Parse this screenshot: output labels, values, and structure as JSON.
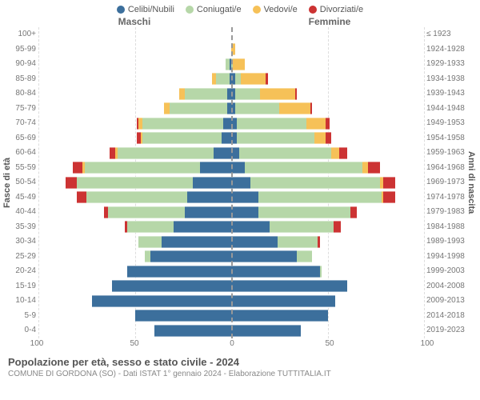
{
  "legend": [
    {
      "label": "Celibi/Nubili",
      "color": "#3c6f9c"
    },
    {
      "label": "Coniugati/e",
      "color": "#b6d7a8"
    },
    {
      "label": "Vedovi/e",
      "color": "#f6c158"
    },
    {
      "label": "Divorziati/e",
      "color": "#cc3333"
    }
  ],
  "headers": {
    "male": "Maschi",
    "female": "Femmine"
  },
  "y_axis_left": "Fasce di età",
  "y_axis_right": "Anni di nascita",
  "x_axis": {
    "max": 100,
    "ticks": [
      100,
      50,
      0,
      50,
      100
    ]
  },
  "title": "Popolazione per età, sesso e stato civile - 2024",
  "subtitle": "COMUNE DI GORDONA (SO) - Dati ISTAT 1° gennaio 2024 - Elaborazione TUTTITALIA.IT",
  "colors": {
    "single": "#3c6f9c",
    "married": "#b6d7a8",
    "widowed": "#f6c158",
    "divorced": "#cc3333",
    "grid": "#dddddd",
    "axis": "#999999",
    "text": "#555555",
    "background": "#ffffff"
  },
  "rows": [
    {
      "age": "100+",
      "birth": "≤ 1923",
      "m": {
        "s": 0,
        "c": 0,
        "w": 0,
        "d": 0
      },
      "f": {
        "s": 0,
        "c": 0,
        "w": 0,
        "d": 0
      }
    },
    {
      "age": "95-99",
      "birth": "1924-1928",
      "m": {
        "s": 0,
        "c": 0,
        "w": 0,
        "d": 0
      },
      "f": {
        "s": 0,
        "c": 0,
        "w": 2,
        "d": 0
      }
    },
    {
      "age": "90-94",
      "birth": "1929-1933",
      "m": {
        "s": 1,
        "c": 2,
        "w": 0,
        "d": 0
      },
      "f": {
        "s": 0,
        "c": 1,
        "w": 6,
        "d": 0
      }
    },
    {
      "age": "85-89",
      "birth": "1934-1938",
      "m": {
        "s": 1,
        "c": 7,
        "w": 2,
        "d": 0
      },
      "f": {
        "s": 2,
        "c": 3,
        "w": 13,
        "d": 1
      }
    },
    {
      "age": "80-84",
      "birth": "1939-1943",
      "m": {
        "s": 2,
        "c": 22,
        "w": 3,
        "d": 0
      },
      "f": {
        "s": 2,
        "c": 13,
        "w": 18,
        "d": 1
      }
    },
    {
      "age": "75-79",
      "birth": "1944-1948",
      "m": {
        "s": 2,
        "c": 30,
        "w": 3,
        "d": 0
      },
      "f": {
        "s": 2,
        "c": 23,
        "w": 16,
        "d": 1
      }
    },
    {
      "age": "70-74",
      "birth": "1949-1953",
      "m": {
        "s": 4,
        "c": 42,
        "w": 2,
        "d": 1
      },
      "f": {
        "s": 3,
        "c": 36,
        "w": 10,
        "d": 2
      }
    },
    {
      "age": "65-69",
      "birth": "1954-1958",
      "m": {
        "s": 5,
        "c": 41,
        "w": 1,
        "d": 2
      },
      "f": {
        "s": 3,
        "c": 40,
        "w": 6,
        "d": 3
      }
    },
    {
      "age": "60-64",
      "birth": "1959-1963",
      "m": {
        "s": 9,
        "c": 50,
        "w": 1,
        "d": 3
      },
      "f": {
        "s": 4,
        "c": 48,
        "w": 4,
        "d": 4
      }
    },
    {
      "age": "55-59",
      "birth": "1964-1968",
      "m": {
        "s": 16,
        "c": 60,
        "w": 1,
        "d": 5
      },
      "f": {
        "s": 7,
        "c": 61,
        "w": 3,
        "d": 6
      }
    },
    {
      "age": "50-54",
      "birth": "1969-1973",
      "m": {
        "s": 20,
        "c": 60,
        "w": 0,
        "d": 6
      },
      "f": {
        "s": 10,
        "c": 67,
        "w": 2,
        "d": 6
      }
    },
    {
      "age": "45-49",
      "birth": "1974-1978",
      "m": {
        "s": 23,
        "c": 52,
        "w": 0,
        "d": 5
      },
      "f": {
        "s": 14,
        "c": 64,
        "w": 1,
        "d": 6
      }
    },
    {
      "age": "40-44",
      "birth": "1979-1983",
      "m": {
        "s": 24,
        "c": 40,
        "w": 0,
        "d": 2
      },
      "f": {
        "s": 14,
        "c": 48,
        "w": 0,
        "d": 3
      }
    },
    {
      "age": "35-39",
      "birth": "1984-1988",
      "m": {
        "s": 30,
        "c": 24,
        "w": 0,
        "d": 1
      },
      "f": {
        "s": 20,
        "c": 33,
        "w": 0,
        "d": 4
      }
    },
    {
      "age": "30-34",
      "birth": "1989-1993",
      "m": {
        "s": 36,
        "c": 12,
        "w": 0,
        "d": 0
      },
      "f": {
        "s": 24,
        "c": 21,
        "w": 0,
        "d": 1
      }
    },
    {
      "age": "25-29",
      "birth": "1994-1998",
      "m": {
        "s": 42,
        "c": 3,
        "w": 0,
        "d": 0
      },
      "f": {
        "s": 34,
        "c": 8,
        "w": 0,
        "d": 0
      }
    },
    {
      "age": "20-24",
      "birth": "1999-2003",
      "m": {
        "s": 54,
        "c": 0,
        "w": 0,
        "d": 0
      },
      "f": {
        "s": 46,
        "c": 1,
        "w": 0,
        "d": 0
      }
    },
    {
      "age": "15-19",
      "birth": "2004-2008",
      "m": {
        "s": 62,
        "c": 0,
        "w": 0,
        "d": 0
      },
      "f": {
        "s": 60,
        "c": 0,
        "w": 0,
        "d": 0
      }
    },
    {
      "age": "10-14",
      "birth": "2009-2013",
      "m": {
        "s": 72,
        "c": 0,
        "w": 0,
        "d": 0
      },
      "f": {
        "s": 54,
        "c": 0,
        "w": 0,
        "d": 0
      }
    },
    {
      "age": "5-9",
      "birth": "2014-2018",
      "m": {
        "s": 50,
        "c": 0,
        "w": 0,
        "d": 0
      },
      "f": {
        "s": 50,
        "c": 0,
        "w": 0,
        "d": 0
      }
    },
    {
      "age": "0-4",
      "birth": "2019-2023",
      "m": {
        "s": 40,
        "c": 0,
        "w": 0,
        "d": 0
      },
      "f": {
        "s": 36,
        "c": 0,
        "w": 0,
        "d": 0
      }
    }
  ]
}
